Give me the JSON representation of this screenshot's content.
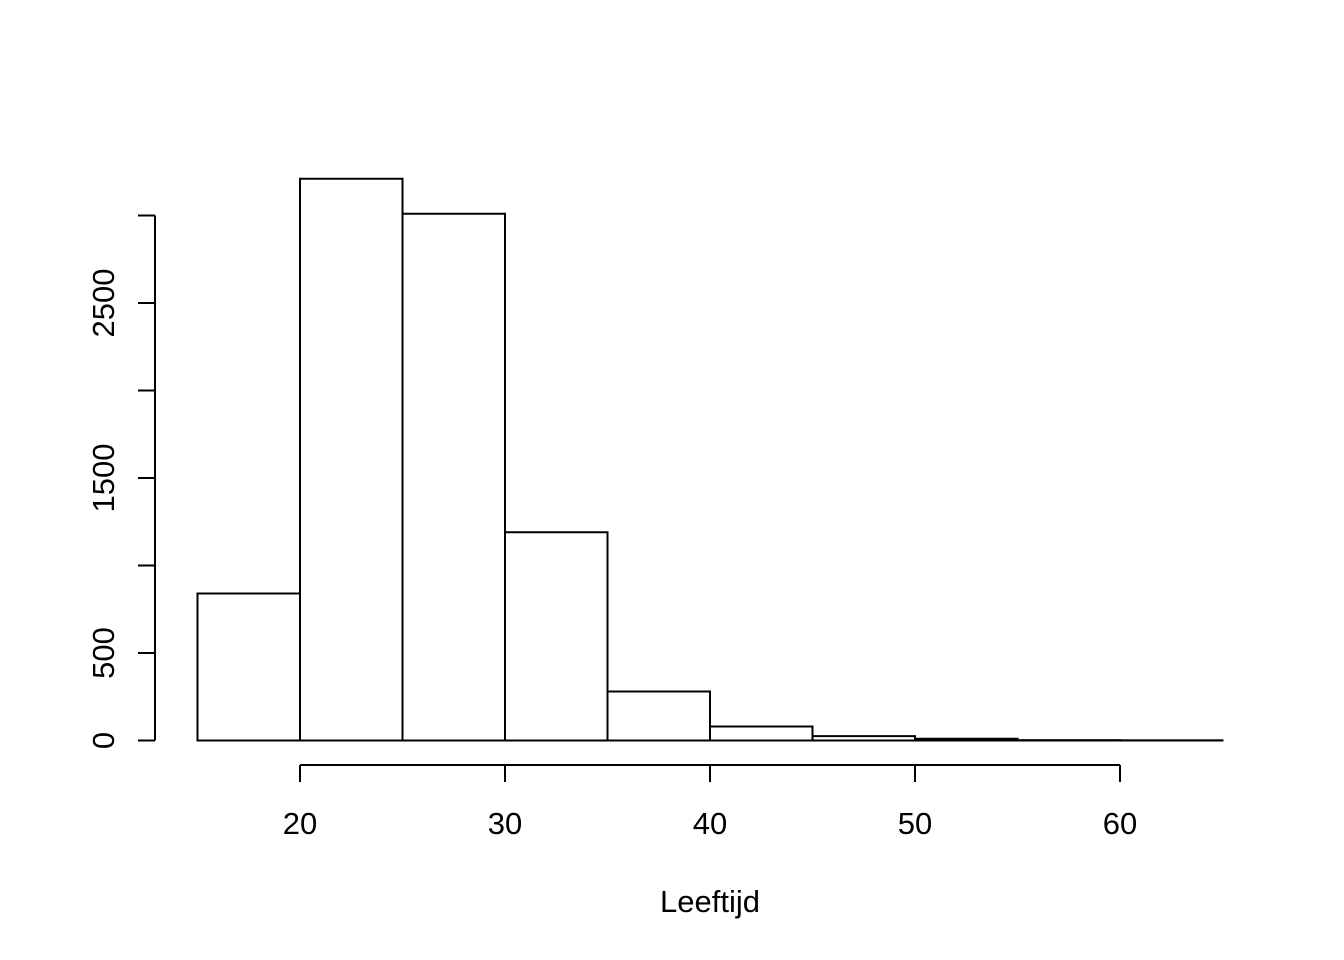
{
  "chart_data": {
    "type": "bar",
    "subtype": "histogram",
    "title": "",
    "xlabel": "Leeftijd",
    "ylabel": "",
    "bin_edges": [
      15,
      20,
      25,
      30,
      35,
      40,
      45,
      50,
      55,
      60,
      65
    ],
    "counts": [
      840,
      3210,
      3010,
      1190,
      280,
      80,
      25,
      10,
      2,
      1
    ],
    "x_ticks": [
      20,
      30,
      40,
      50,
      60
    ],
    "y_ticks": [
      0,
      500,
      1000,
      1500,
      2000,
      2500,
      3000
    ],
    "y_tick_labels": [
      "0",
      "500",
      "",
      "1500",
      "",
      "2500",
      ""
    ],
    "xlim": [
      15,
      65
    ],
    "ylim": [
      0,
      3000
    ],
    "grid": false,
    "legend_position": "none",
    "bar_fill": "#ffffff",
    "bar_stroke": "#000000",
    "axis_color": "#000000",
    "text_color": "#000000",
    "background": "#ffffff"
  }
}
